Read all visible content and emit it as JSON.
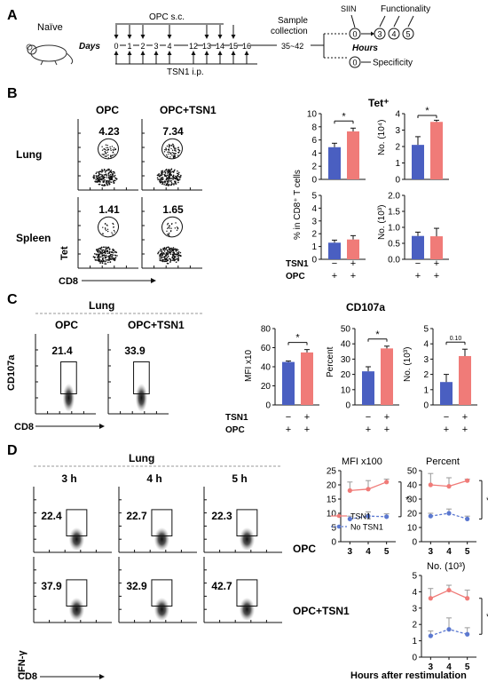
{
  "panels": {
    "A": "A",
    "B": "B",
    "C": "C",
    "D": "D"
  },
  "colors": {
    "tsn1": "#f07b78",
    "bar_blue": "#4a5fc1",
    "ctrl_line": "#5b78d0",
    "axis": "#111111",
    "dash": "#999999"
  },
  "a": {
    "naive": "Naïve",
    "days": "Days",
    "opc_sc": "OPC s.c.",
    "tsn1_ip": "TSN1 i.p.",
    "sample_1": "Sample",
    "sample_2": "collection",
    "day_ticks": [
      "0",
      "1",
      "2",
      "3",
      "4",
      "12",
      "13",
      "14",
      "15",
      "16"
    ],
    "range": "35~42",
    "siin": "SIIN",
    "functionality": "Functionality",
    "hours": "Hours",
    "specificity": "Specificity",
    "steps": [
      "0",
      "3",
      "4",
      "5"
    ],
    "spec_step": "0"
  },
  "b": {
    "col_opc": "OPC",
    "col_opc_tsn1": "OPC+TSN1",
    "row_lung": "Lung",
    "row_spleen": "Spleen",
    "axis_y": "Tet",
    "axis_x": "CD8",
    "gate_values": [
      [
        "4.23",
        "7.34"
      ],
      [
        "1.41",
        "1.65"
      ]
    ],
    "title": "Tet⁺",
    "ylabel_pct": "% in CD8⁺ T cells",
    "ylabel_no_top": "No. (10⁴)",
    "ylabel_no_bot": "No. (10³)",
    "legend_tsn1": "TSN1",
    "legend_opc": "OPC",
    "signs_tsn1": [
      "−",
      "+"
    ],
    "signs_opc": [
      "+",
      "+"
    ],
    "sig": "*"
  },
  "c": {
    "dashed_title": "Lung",
    "col_opc": "OPC",
    "col_opc_tsn1": "OPC+TSN1",
    "gate_values": [
      "21.4",
      "33.9"
    ],
    "axis_y": "CD107a",
    "axis_x": "CD8",
    "title": "CD107a",
    "ylabel_mfi": "MFI  x10",
    "ylabel_pct": "Percent",
    "ylabel_no": "No. (10³)",
    "legend_tsn1": "TSN1",
    "legend_opc": "OPC",
    "signs_tsn1": [
      "−",
      "+"
    ],
    "signs_opc": [
      "+",
      "+"
    ],
    "sig": "*",
    "pval": "0.10"
  },
  "d": {
    "dashed_title": "Lung",
    "cols": [
      "3 h",
      "4 h",
      "5 h"
    ],
    "row_opc": "OPC",
    "row_opc_tsn1": "OPC+TSN1",
    "gate_values": [
      [
        "22.4",
        "22.7",
        "22.3"
      ],
      [
        "37.9",
        "32.9",
        "42.7"
      ]
    ],
    "axis_y": "IFN-γ",
    "axis_x": "CD8",
    "title_mfi": "MFI x100",
    "title_pct": "Percent",
    "title_no": "No. (10³)",
    "xlabel": "Hours after restimulation",
    "legend_tsn1": "TSN1",
    "legend_no": "No TSN1",
    "sig": "*"
  },
  "chart_data": [
    {
      "type": "bar",
      "id": "B-lung-pct",
      "categories": [
        "OPC",
        "OPC+TSN1"
      ],
      "values": [
        4.9,
        7.3
      ],
      "errors": [
        0.6,
        0.5
      ],
      "ylim": [
        0,
        10
      ],
      "yticks": [
        0,
        2,
        4,
        6,
        8,
        10
      ],
      "sig": "*"
    },
    {
      "type": "bar",
      "id": "B-lung-no",
      "categories": [
        "OPC",
        "OPC+TSN1"
      ],
      "values": [
        2.1,
        3.5
      ],
      "errors": [
        0.5,
        0.1
      ],
      "ylim": [
        0,
        4
      ],
      "yticks": [
        0,
        1,
        2,
        3,
        4
      ],
      "sig": "*"
    },
    {
      "type": "bar",
      "id": "B-spleen-pct",
      "categories": [
        "OPC",
        "OPC+TSN1"
      ],
      "values": [
        1.3,
        1.55
      ],
      "errors": [
        0.2,
        0.3
      ],
      "ylim": [
        0,
        5
      ],
      "yticks": [
        0,
        1,
        2,
        3,
        4,
        5
      ]
    },
    {
      "type": "bar",
      "id": "B-spleen-no",
      "categories": [
        "OPC",
        "OPC+TSN1"
      ],
      "values": [
        0.73,
        0.72
      ],
      "errors": [
        0.12,
        0.25
      ],
      "ylim": [
        0,
        2
      ],
      "yticks": [
        0.0,
        0.5,
        1.0,
        1.5,
        2.0
      ]
    },
    {
      "type": "bar",
      "id": "C-mfi",
      "categories": [
        "OPC",
        "OPC+TSN1"
      ],
      "values": [
        45,
        55
      ],
      "errors": [
        1,
        3
      ],
      "ylim": [
        0,
        80
      ],
      "yticks": [
        0,
        20,
        40,
        60,
        80
      ],
      "sig": "*"
    },
    {
      "type": "bar",
      "id": "C-pct",
      "categories": [
        "OPC",
        "OPC+TSN1"
      ],
      "values": [
        22,
        37
      ],
      "errors": [
        3,
        1.5
      ],
      "ylim": [
        0,
        50
      ],
      "yticks": [
        0,
        10,
        20,
        30,
        40,
        50
      ],
      "sig": "*"
    },
    {
      "type": "bar",
      "id": "C-no",
      "categories": [
        "OPC",
        "OPC+TSN1"
      ],
      "values": [
        1.5,
        3.2
      ],
      "errors": [
        0.5,
        0.45
      ],
      "ylim": [
        0,
        5
      ],
      "yticks": [
        0,
        1,
        2,
        3,
        4,
        5
      ],
      "sig": "0.10"
    },
    {
      "type": "line",
      "id": "D-mfi",
      "x": [
        3,
        4,
        5
      ],
      "xlim": [
        2.5,
        5.5
      ],
      "ylim": [
        0,
        25
      ],
      "yticks": [
        0,
        5,
        10,
        15,
        20,
        25
      ],
      "sig": "*",
      "series": [
        {
          "name": "TSN1",
          "values": [
            18,
            18.5,
            21
          ],
          "errors": [
            3,
            3,
            1
          ]
        },
        {
          "name": "No TSN1",
          "values": [
            8,
            9,
            8.8
          ],
          "errors": [
            1,
            1.5,
            1
          ]
        }
      ]
    },
    {
      "type": "line",
      "id": "D-pct",
      "x": [
        3,
        4,
        5
      ],
      "xlim": [
        2.5,
        5.5
      ],
      "ylim": [
        0,
        50
      ],
      "yticks": [
        0,
        10,
        20,
        30,
        40,
        50
      ],
      "sig": "*",
      "series": [
        {
          "name": "TSN1",
          "values": [
            40,
            39,
            43
          ],
          "errors": [
            8,
            6,
            1
          ]
        },
        {
          "name": "No TSN1",
          "values": [
            18,
            20,
            16
          ],
          "errors": [
            2,
            3,
            2
          ]
        }
      ]
    },
    {
      "type": "line",
      "id": "D-no",
      "x": [
        3,
        4,
        5
      ],
      "xlim": [
        2.5,
        5.5
      ],
      "ylim": [
        0,
        5
      ],
      "yticks": [
        0,
        1,
        2,
        3,
        4,
        5
      ],
      "sig": "*",
      "series": [
        {
          "name": "TSN1",
          "values": [
            3.6,
            4.1,
            3.6
          ],
          "errors": [
            0.6,
            0.3,
            0.5
          ]
        },
        {
          "name": "No TSN1",
          "values": [
            1.3,
            1.7,
            1.4
          ],
          "errors": [
            0.3,
            0.7,
            0.4
          ]
        }
      ]
    }
  ]
}
